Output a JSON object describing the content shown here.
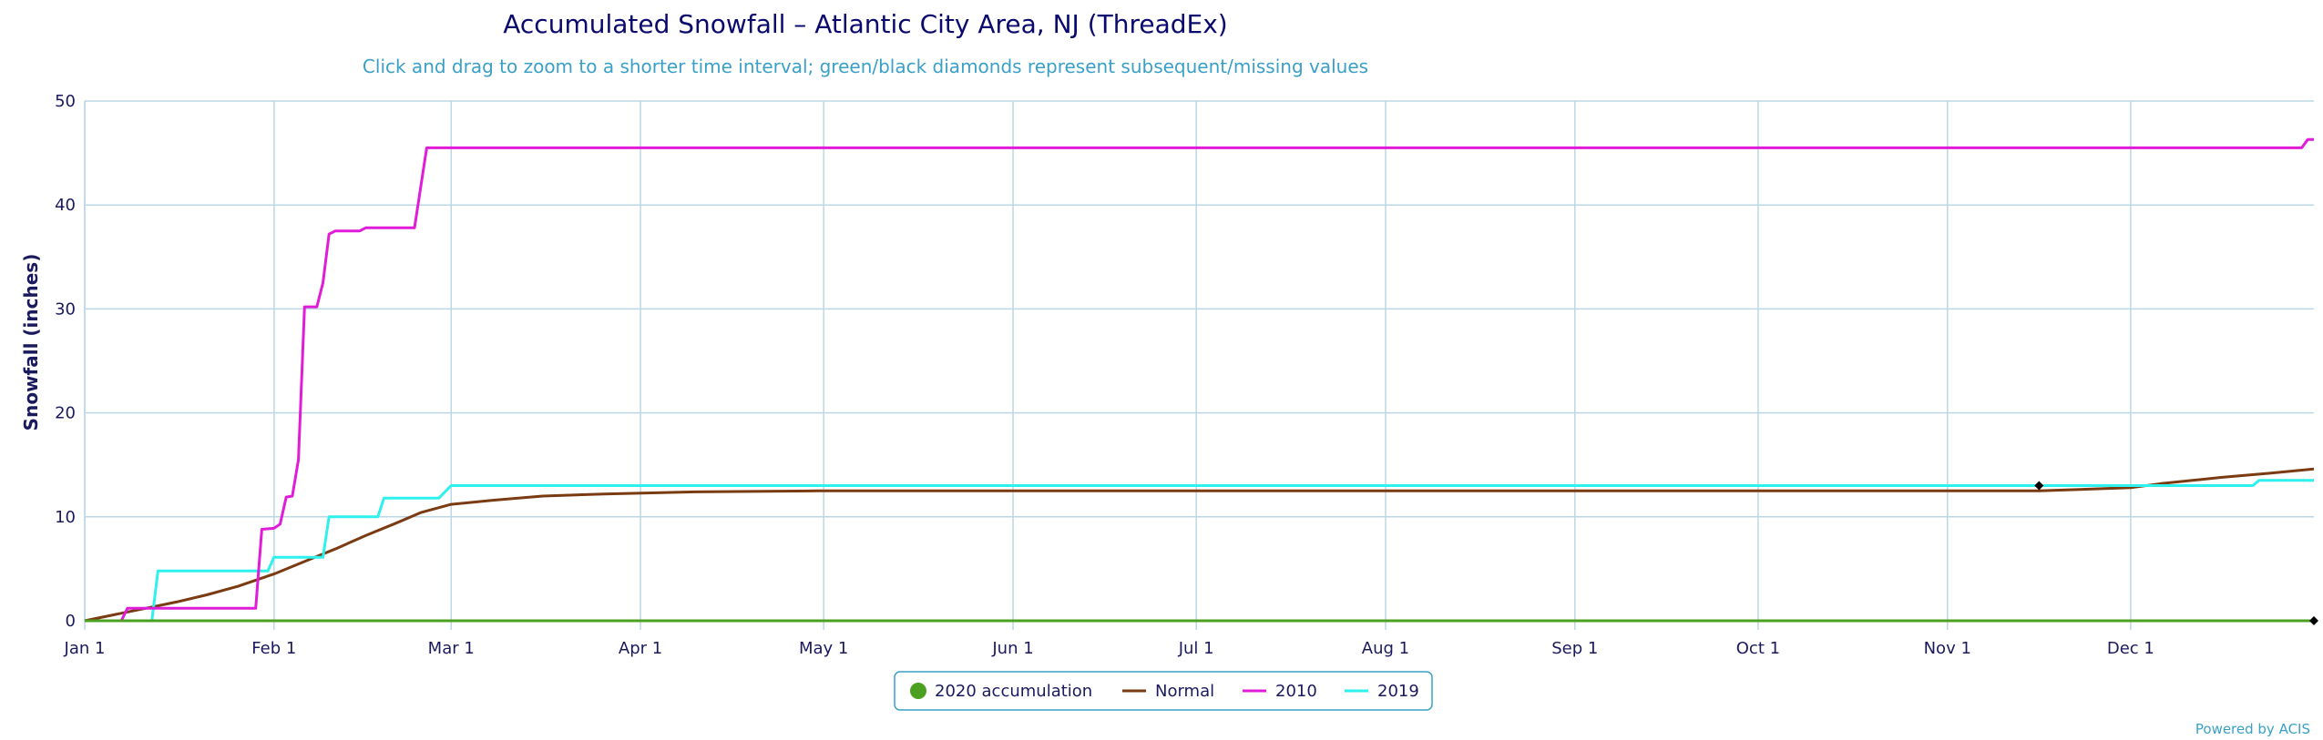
{
  "chart_data": {
    "type": "line",
    "title": "Accumulated Snowfall – Atlantic City Area, NJ (ThreadEx)",
    "subtitle": "Click and drag to zoom to a shorter time interval; green/black diamonds represent subsequent/missing values",
    "ylabel": "Snowfall (inches)",
    "xlabel": "",
    "x_domain": [
      "Jan 1",
      "Dec 31"
    ],
    "ylim": [
      0,
      50
    ],
    "y_ticks": [
      0,
      10,
      20,
      30,
      40,
      50
    ],
    "x_ticks": [
      {
        "label": "Jan 1",
        "day": 0
      },
      {
        "label": "Feb 1",
        "day": 31
      },
      {
        "label": "Mar 1",
        "day": 60
      },
      {
        "label": "Apr 1",
        "day": 91
      },
      {
        "label": "May 1",
        "day": 121
      },
      {
        "label": "Jun 1",
        "day": 152
      },
      {
        "label": "Jul 1",
        "day": 182
      },
      {
        "label": "Aug 1",
        "day": 213
      },
      {
        "label": "Sep 1",
        "day": 244
      },
      {
        "label": "Oct 1",
        "day": 274
      },
      {
        "label": "Nov 1",
        "day": 305
      },
      {
        "label": "Dec 1",
        "day": 335
      }
    ],
    "grid": true,
    "legend_position": "bottom-center",
    "series": [
      {
        "name": "2020 accumulation",
        "color": "#4ca021",
        "marker": "circle",
        "points": [
          [
            0,
            0
          ],
          [
            365,
            0
          ]
        ]
      },
      {
        "name": "Normal",
        "color": "#7a3b12",
        "points": [
          [
            0,
            0
          ],
          [
            5,
            0.6
          ],
          [
            10,
            1.2
          ],
          [
            15,
            1.8
          ],
          [
            20,
            2.5
          ],
          [
            25,
            3.3
          ],
          [
            31,
            4.5
          ],
          [
            36,
            5.7
          ],
          [
            41,
            6.9
          ],
          [
            46,
            8.2
          ],
          [
            51,
            9.4
          ],
          [
            55,
            10.4
          ],
          [
            60,
            11.2
          ],
          [
            67,
            11.6
          ],
          [
            75,
            12.0
          ],
          [
            85,
            12.2
          ],
          [
            100,
            12.4
          ],
          [
            120,
            12.5
          ],
          [
            200,
            12.5
          ],
          [
            300,
            12.5
          ],
          [
            320,
            12.5
          ],
          [
            325,
            12.6
          ],
          [
            335,
            12.8
          ],
          [
            340,
            13.2
          ],
          [
            350,
            13.8
          ],
          [
            358,
            14.2
          ],
          [
            365,
            14.6
          ]
        ]
      },
      {
        "name": "2010",
        "color": "#e01cd8",
        "points": [
          [
            0,
            0
          ],
          [
            6,
            0
          ],
          [
            7,
            1.2
          ],
          [
            28,
            1.2
          ],
          [
            29,
            8.8
          ],
          [
            31,
            8.9
          ],
          [
            32,
            9.3
          ],
          [
            33,
            11.9
          ],
          [
            34,
            12.0
          ],
          [
            35,
            15.5
          ],
          [
            36,
            30.2
          ],
          [
            38,
            30.2
          ],
          [
            39,
            32.5
          ],
          [
            40,
            37.2
          ],
          [
            41,
            37.5
          ],
          [
            45,
            37.5
          ],
          [
            46,
            37.8
          ],
          [
            54,
            37.8
          ],
          [
            56,
            45.5
          ],
          [
            363,
            45.5
          ],
          [
            364,
            46.3
          ],
          [
            365,
            46.3
          ]
        ]
      },
      {
        "name": "2019",
        "color": "#2ef0ec",
        "points": [
          [
            0,
            0
          ],
          [
            11,
            0
          ],
          [
            12,
            4.8
          ],
          [
            30,
            4.8
          ],
          [
            31,
            6.1
          ],
          [
            39,
            6.1
          ],
          [
            40,
            10.0
          ],
          [
            48,
            10.0
          ],
          [
            49,
            11.8
          ],
          [
            58,
            11.8
          ],
          [
            60,
            13.0
          ],
          [
            355,
            13.0
          ],
          [
            356,
            13.5
          ],
          [
            365,
            13.5
          ]
        ]
      }
    ],
    "markers": [
      {
        "shape": "diamond",
        "color": "#000000",
        "day": 320,
        "value": 13.0
      },
      {
        "shape": "diamond",
        "color": "#000000",
        "day": 365,
        "value": 0
      }
    ]
  },
  "credits": "Powered by ACIS"
}
